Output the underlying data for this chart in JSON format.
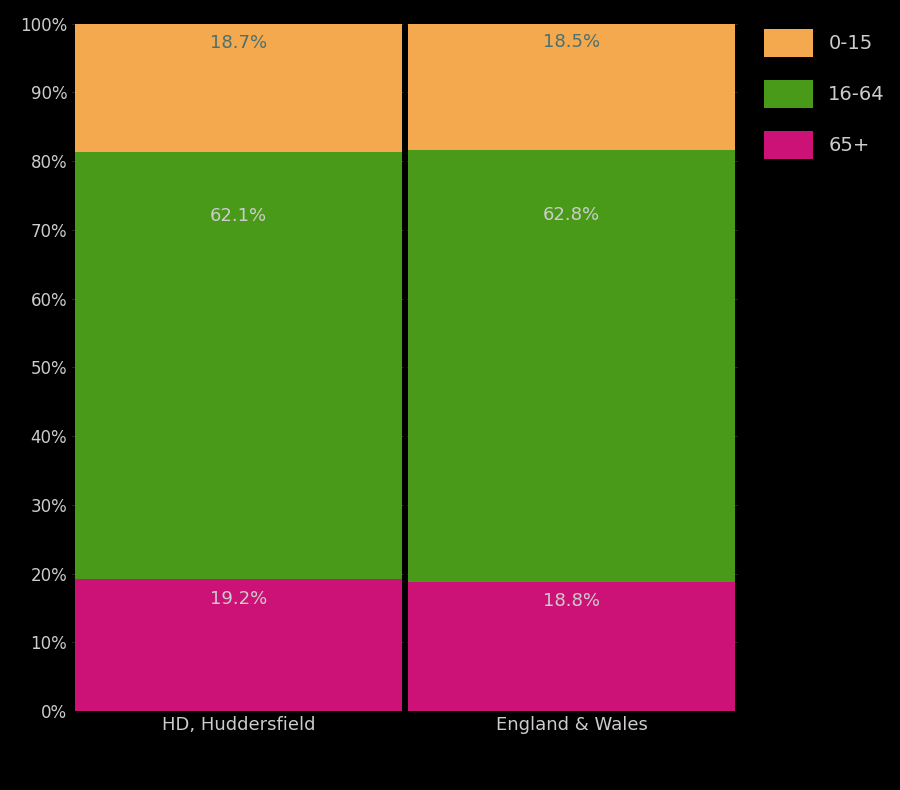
{
  "categories": [
    "HD, Huddersfield",
    "England & Wales"
  ],
  "segments": {
    "65+": [
      19.2,
      18.8
    ],
    "16-64": [
      62.1,
      62.8
    ],
    "0-15": [
      18.7,
      18.5
    ]
  },
  "colors": {
    "65+": "#cc1177",
    "16-64": "#4a9a1a",
    "0-15": "#f5a94e"
  },
  "label_color_orange": "#4a7a7a",
  "label_color_green": "#cccccc",
  "label_color_pink": "#cccccc",
  "background_color": "#000000",
  "tick_color": "#cccccc",
  "legend_text_color": "#cccccc",
  "yticks": [
    0,
    10,
    20,
    30,
    40,
    50,
    60,
    70,
    80,
    90,
    100
  ],
  "ylim": [
    0,
    100
  ],
  "bar_width": 0.98,
  "figsize": [
    9.0,
    7.9
  ],
  "dpi": 100,
  "x_positions": [
    0,
    1
  ],
  "xlim": [
    -0.5,
    1.5
  ]
}
